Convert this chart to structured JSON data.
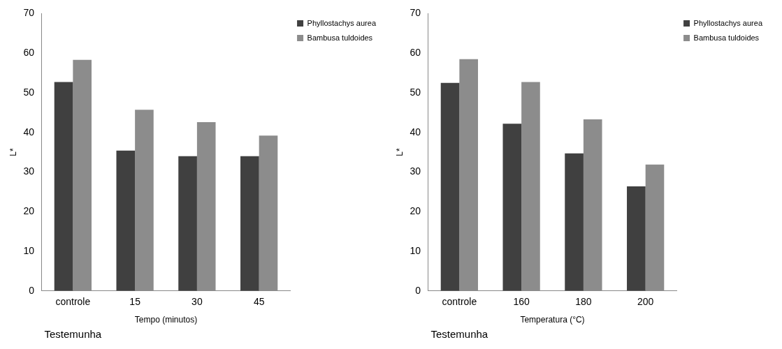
{
  "chart_data": [
    {
      "type": "bar",
      "xlabel": "Tempo (minutos)",
      "ylabel": "L*",
      "categories": [
        "controle",
        "15",
        "30",
        "45"
      ],
      "series": [
        {
          "name": "Phyllostachys aurea",
          "color": "#404040",
          "values": [
            52.7,
            35.4,
            34.0,
            34.0
          ]
        },
        {
          "name": "Bambusa tuldoides",
          "color": "#8c8c8c",
          "values": [
            58.3,
            45.7,
            42.6,
            39.2
          ]
        }
      ],
      "ylim": [
        0,
        70
      ],
      "yticks": [
        0,
        10,
        20,
        30,
        40,
        50,
        60,
        70
      ],
      "grid": false,
      "legend": "top right",
      "annotations": [
        "Testemunha"
      ]
    },
    {
      "type": "bar",
      "xlabel": "Temperatura (°C)",
      "ylabel": "L*",
      "categories": [
        "controle",
        "160",
        "180",
        "200"
      ],
      "series": [
        {
          "name": "Phyllostachys aurea",
          "color": "#404040",
          "values": [
            52.5,
            42.2,
            34.7,
            26.4
          ]
        },
        {
          "name": "Bambusa tuldoides",
          "color": "#8c8c8c",
          "values": [
            58.5,
            52.7,
            43.3,
            31.9
          ]
        }
      ],
      "ylim": [
        0,
        70
      ],
      "yticks": [
        0,
        10,
        20,
        30,
        40,
        50,
        60,
        70
      ],
      "grid": false,
      "legend": "top right",
      "annotations": [
        "Testemunha"
      ]
    }
  ]
}
